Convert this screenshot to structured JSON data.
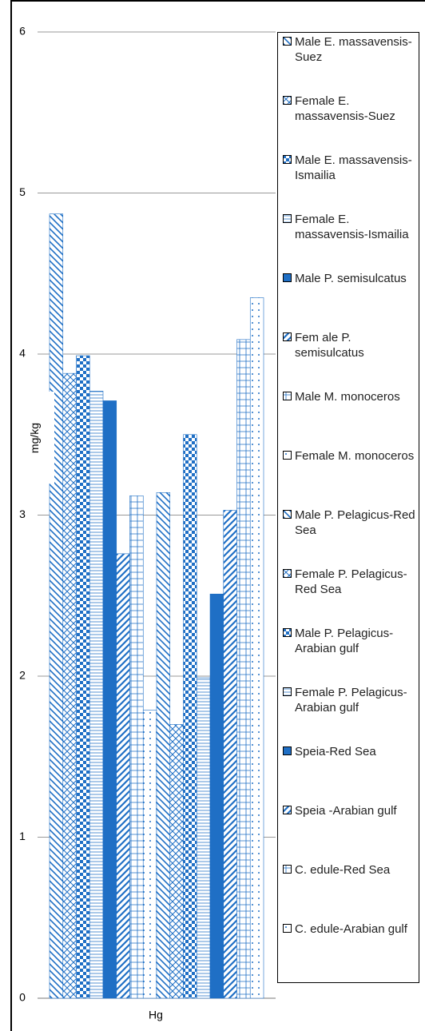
{
  "chart_data": {
    "type": "bar",
    "y_label": "mg/kg",
    "categories": [
      "Hg"
    ],
    "ylim": [
      0,
      6
    ],
    "yticks": [
      0,
      1,
      2,
      3,
      4,
      5,
      6
    ],
    "grid": true,
    "series": [
      {
        "name": "Male E. massavensis-Suez",
        "color": "#1f6fc5",
        "values": [
          4.87
        ]
      },
      {
        "name": "Female E. massavensis-Suez",
        "color": "#1f6fc5",
        "values": [
          3.88
        ]
      },
      {
        "name": "Male E. massavensis-Ismailia",
        "color": "#1f6fc5",
        "values": [
          3.99
        ]
      },
      {
        "name": "Female E. massavensis-Ismailia",
        "color": "#1f6fc5",
        "values": [
          3.77
        ]
      },
      {
        "name": "Male P. semisulcatus",
        "color": "#1f6fc5",
        "values": [
          3.71
        ]
      },
      {
        "name": "Fem ale P. semisulcatus",
        "color": "#1f6fc5",
        "values": [
          2.76
        ]
      },
      {
        "name": "Male M. monoceros",
        "color": "#1f6fc5",
        "values": [
          3.12
        ]
      },
      {
        "name": "Female M. monoceros",
        "color": "#1f6fc5",
        "values": [
          1.79
        ]
      },
      {
        "name": "Male P. Pelagicus-Red Sea",
        "color": "#1f6fc5",
        "values": [
          3.14
        ]
      },
      {
        "name": "Female P. Pelagicus-Red Sea",
        "color": "#1f6fc5",
        "values": [
          1.7
        ]
      },
      {
        "name": "Male P. Pelagicus-Arabian gulf",
        "color": "#1f6fc5",
        "values": [
          3.5
        ]
      },
      {
        "name": "Female P. Pelagicus-Arabian gulf",
        "color": "#1f6fc5",
        "values": [
          1.99
        ]
      },
      {
        "name": "Speia-Red Sea",
        "color": "#1f6fc5",
        "values": [
          2.51
        ]
      },
      {
        "name": "Speia -Arabian gulf",
        "color": "#1f6fc5",
        "values": [
          3.03
        ]
      },
      {
        "name": "C. edule-Red Sea",
        "color": "#1f6fc5",
        "values": [
          4.09
        ]
      },
      {
        "name": "C. edule-Arabian gulf",
        "color": "#1f6fc5",
        "values": [
          4.35
        ]
      }
    ]
  }
}
